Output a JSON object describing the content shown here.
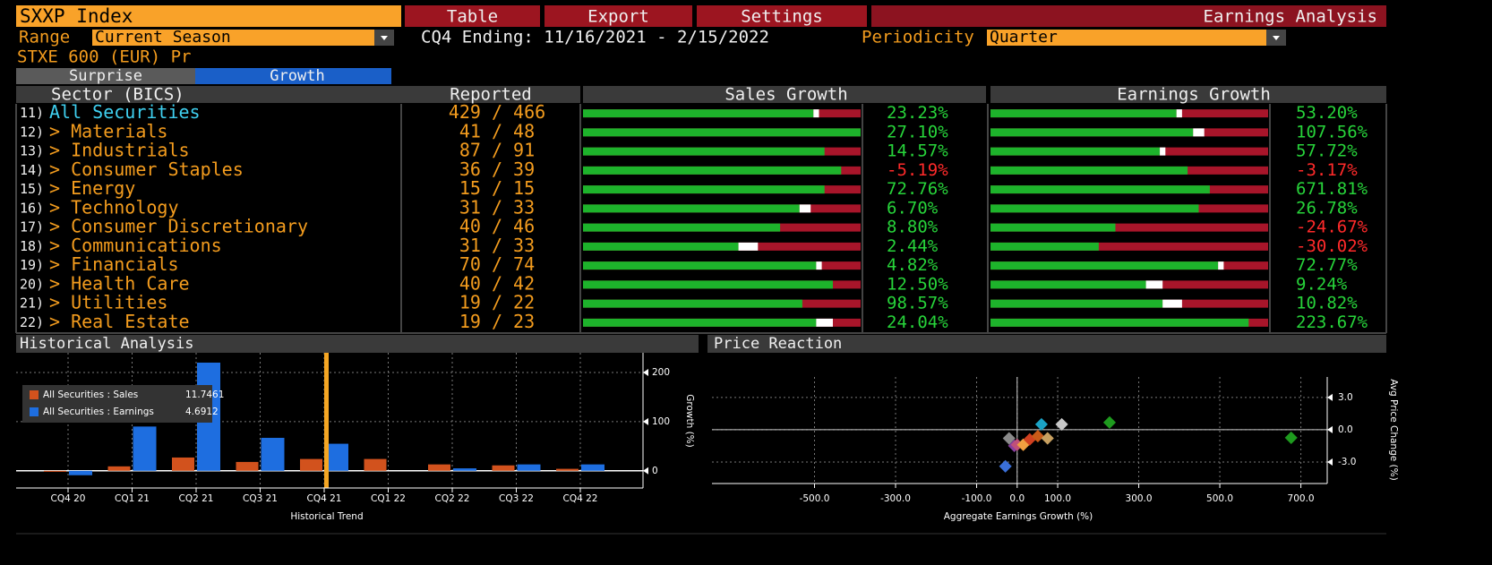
{
  "header": {
    "title": "SXXP Index",
    "buttons": [
      "Table",
      "Export",
      "Settings"
    ],
    "function": "Earnings Analysis",
    "range_label": "Range",
    "range_value": "Current Season",
    "period": "CQ4 Ending: 11/16/2021 - 2/15/2022",
    "periodicity_label": "Periodicity",
    "periodicity_value": "Quarter",
    "index_name": "STXE 600 (EUR) Pr",
    "tabs": [
      "Surprise",
      "Growth"
    ]
  },
  "table": {
    "columns": [
      "Sector (BICS)",
      "Reported",
      "Sales Growth",
      "Earnings Growth"
    ],
    "rows": [
      {
        "num": "11)",
        "name": "All Securities",
        "reported": "429 / 466",
        "sales": "23.23%",
        "earnings": "53.20%",
        "sales_bar": [
          0.83,
          0.02
        ],
        "earnings_bar": [
          0.67,
          0.02
        ]
      },
      {
        "num": "12)",
        "name": "> Materials",
        "reported": "41 / 48",
        "sales": "27.10%",
        "earnings": "107.56%",
        "sales_bar": [
          1.0,
          0
        ],
        "earnings_bar": [
          0.73,
          0.04
        ]
      },
      {
        "num": "13)",
        "name": "> Industrials",
        "reported": "87 / 91",
        "sales": "14.57%",
        "earnings": "57.72%",
        "sales_bar": [
          0.87,
          0
        ],
        "earnings_bar": [
          0.61,
          0.02
        ]
      },
      {
        "num": "14)",
        "name": "> Consumer Staples",
        "reported": "36 / 39",
        "sales": "-5.19%",
        "earnings": "-3.17%",
        "sales_bar": [
          0.93,
          0
        ],
        "earnings_bar": [
          0.71,
          0
        ]
      },
      {
        "num": "15)",
        "name": "> Energy",
        "reported": "15 / 15",
        "sales": "72.76%",
        "earnings": "671.81%",
        "sales_bar": [
          0.87,
          0
        ],
        "earnings_bar": [
          0.79,
          0
        ]
      },
      {
        "num": "16)",
        "name": "> Technology",
        "reported": "31 / 33",
        "sales": "6.70%",
        "earnings": "26.78%",
        "sales_bar": [
          0.78,
          0.04
        ],
        "earnings_bar": [
          0.75,
          0
        ]
      },
      {
        "num": "17)",
        "name": "> Consumer Discretionary",
        "reported": "40 / 46",
        "sales": "8.80%",
        "earnings": "-24.67%",
        "sales_bar": [
          0.71,
          0
        ],
        "earnings_bar": [
          0.45,
          0
        ]
      },
      {
        "num": "18)",
        "name": "> Communications",
        "reported": "31 / 33",
        "sales": "2.44%",
        "earnings": "-30.02%",
        "sales_bar": [
          0.56,
          0.07
        ],
        "earnings_bar": [
          0.39,
          0
        ]
      },
      {
        "num": "19)",
        "name": "> Financials",
        "reported": "70 / 74",
        "sales": "4.82%",
        "earnings": "72.77%",
        "sales_bar": [
          0.84,
          0.02
        ],
        "earnings_bar": [
          0.82,
          0.02
        ]
      },
      {
        "num": "20)",
        "name": "> Health Care",
        "reported": "40 / 42",
        "sales": "12.50%",
        "earnings": "9.24%",
        "sales_bar": [
          0.9,
          0
        ],
        "earnings_bar": [
          0.56,
          0.06
        ]
      },
      {
        "num": "21)",
        "name": "> Utilities",
        "reported": "19 / 22",
        "sales": "98.57%",
        "earnings": "10.82%",
        "sales_bar": [
          0.79,
          0
        ],
        "earnings_bar": [
          0.62,
          0.07
        ]
      },
      {
        "num": "22)",
        "name": "> Real Estate",
        "reported": "19 / 23",
        "sales": "24.04%",
        "earnings": "223.67%",
        "sales_bar": [
          0.84,
          0.06
        ],
        "earnings_bar": [
          0.93,
          0
        ]
      }
    ]
  },
  "chart_data": [
    {
      "type": "bar",
      "title": "Historical Analysis",
      "x_label": "Historical Trend",
      "y_label": "Growth (%)",
      "categories": [
        "CQ4 20",
        "CQ1 21",
        "CQ2 21",
        "CQ3 21",
        "CQ4 21",
        "CQ1 22",
        "CQ2 22",
        "CQ3 22",
        "CQ4 22"
      ],
      "series": [
        {
          "name": "All Securities : Sales",
          "legend_value": 11.7461,
          "color": "#d2521d",
          "values": [
            -2,
            9,
            27,
            18,
            24,
            24,
            13,
            11,
            4
          ]
        },
        {
          "name": "All Securities : Earnings",
          "legend_value": 4.6912,
          "color": "#1e6ee0",
          "values": [
            -9,
            90,
            220,
            67,
            55,
            null,
            5,
            13,
            13
          ]
        }
      ],
      "ylim": [
        -35,
        240
      ],
      "yticks": [
        0,
        100,
        200
      ],
      "grid": true
    },
    {
      "type": "scatter",
      "title": "Price Reaction",
      "x_label": "Aggregate Earnings Growth (%)",
      "y_label": "Avg Price Change (%)",
      "x": [
        228,
        676,
        60,
        110,
        -29,
        -20,
        -7,
        0,
        15,
        31,
        51,
        75
      ],
      "values": [
        0.67,
        -0.75,
        0.5,
        0.5,
        -3.4,
        -0.8,
        -1.5,
        -1.4,
        -1.4,
        -0.9,
        -0.6,
        -0.8
      ],
      "colors": [
        "#1e9a1e",
        "#1e9a1e",
        "#1ba3c6",
        "#c8c8c8",
        "#3a6fd8",
        "#8a8a8a",
        "#8a3fa0",
        "#c0507a",
        "#f0a040",
        "#d04020",
        "#c85a18",
        "#c8a060"
      ],
      "xlim": [
        -753,
        765
      ],
      "xticks": [
        {
          "value": -500,
          "label": "-500.0"
        },
        {
          "value": -300,
          "label": "-300.0"
        },
        {
          "value": -100,
          "label": "-100.0"
        },
        {
          "value": 0,
          "label": "0.0"
        },
        {
          "value": 100,
          "label": "100.0"
        },
        {
          "value": 300,
          "label": "300.0"
        },
        {
          "value": 500,
          "label": "500.0"
        },
        {
          "value": 700,
          "label": "700.0"
        }
      ],
      "ylim": [
        -5,
        4.9
      ],
      "yticks": [
        {
          "value": 3,
          "label": "3.0"
        },
        {
          "value": 0,
          "label": "0.0"
        },
        {
          "value": -3,
          "label": "-3.0"
        }
      ],
      "grid": true
    }
  ]
}
